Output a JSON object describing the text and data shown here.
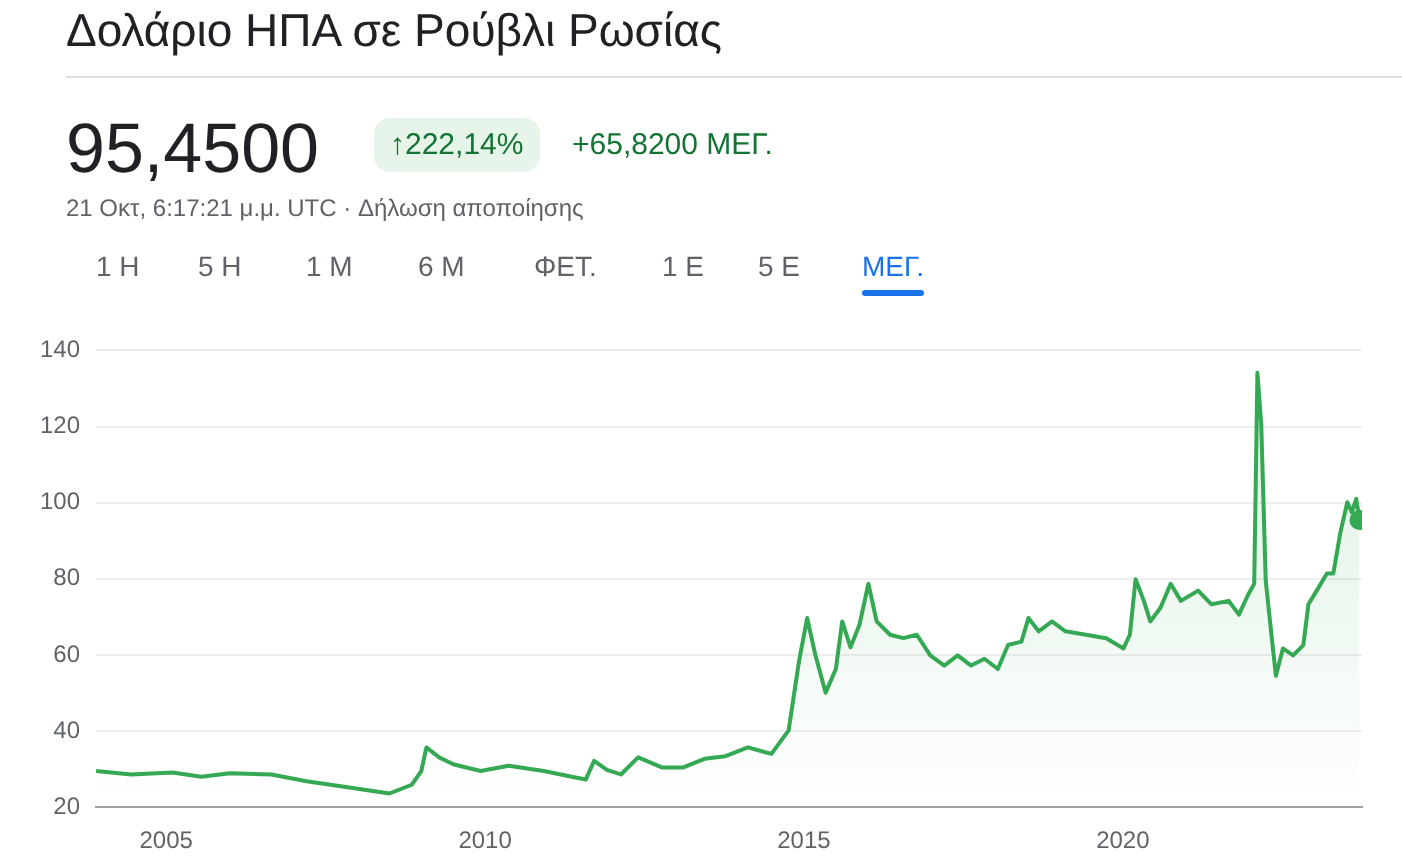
{
  "chart_data": {
    "type": "area",
    "title": "Δολάριο ΗΠΑ σε Ρούβλι Ρωσίας",
    "subtitle": "21 Οκτ, 6:17:21 μ.μ. UTC · Δήλωση αποποίησης",
    "annotations": [
      "95,4500",
      "↑222,14%",
      "+65,8200 ΜΕΓ.",
      "1 Η",
      "5 Η",
      "1 Μ",
      "6 Μ",
      "ΦΕΤ.",
      "1 Ε",
      "5 Ε",
      "ΜΕΓ."
    ],
    "x": [
      2003.9,
      2004.45,
      2005.1,
      2005.55,
      2006.0,
      2006.65,
      2007.2,
      2007.95,
      2008.5,
      2008.85,
      2009.0,
      2009.08,
      2009.28,
      2009.5,
      2009.93,
      2010.37,
      2010.92,
      2011.36,
      2011.58,
      2011.71,
      2011.91,
      2012.13,
      2012.4,
      2012.78,
      2013.1,
      2013.44,
      2013.77,
      2014.12,
      2014.49,
      2014.76,
      2014.92,
      2015.05,
      2015.18,
      2015.34,
      2015.5,
      2015.6,
      2015.73,
      2015.87,
      2016.01,
      2016.14,
      2016.35,
      2016.56,
      2016.77,
      2016.98,
      2017.2,
      2017.41,
      2017.62,
      2017.83,
      2018.04,
      2018.2,
      2018.41,
      2018.52,
      2018.68,
      2018.89,
      2019.1,
      2019.42,
      2019.74,
      2020.01,
      2020.11,
      2020.2,
      2020.33,
      2020.43,
      2020.59,
      2020.75,
      2020.91,
      2021.18,
      2021.39,
      2021.66,
      2021.82,
      2021.97,
      2022.06,
      2022.11,
      2022.17,
      2022.24,
      2022.33,
      2022.4,
      2022.51,
      2022.67,
      2022.83,
      2022.91,
      2023.04,
      2023.2,
      2023.3,
      2023.41,
      2023.52,
      2023.59,
      2023.66,
      2023.71
    ],
    "series": [
      {
        "color": "#34a853",
        "values": [
          29.5,
          28.6,
          29.1,
          28.0,
          28.9,
          28.6,
          26.8,
          25.0,
          23.6,
          25.9,
          29.5,
          35.7,
          33.1,
          31.3,
          29.5,
          30.9,
          29.5,
          28.0,
          27.3,
          32.2,
          29.8,
          28.6,
          33.1,
          30.4,
          30.4,
          32.7,
          33.4,
          35.7,
          34.0,
          40.2,
          58.1,
          69.7,
          59.9,
          50.1,
          56.3,
          68.8,
          62.0,
          67.9,
          78.7,
          68.8,
          65.3,
          64.4,
          65.3,
          59.9,
          57.2,
          59.9,
          57.2,
          59.0,
          56.3,
          62.6,
          63.5,
          69.7,
          66.2,
          68.8,
          66.2,
          65.3,
          64.4,
          61.7,
          65.3,
          79.9,
          74.2,
          68.8,
          72.4,
          78.7,
          74.2,
          76.9,
          73.3,
          74.2,
          70.6,
          76.0,
          78.7,
          134.1,
          120.7,
          79.6,
          65.3,
          54.5,
          61.7,
          59.9,
          62.6,
          73.3,
          76.9,
          81.4,
          81.4,
          92.1,
          100.1,
          97.5,
          101.0,
          95.45
        ]
      }
    ],
    "xlim": [
      2003.9,
      2023.75
    ],
    "xticks": [
      2005,
      2010,
      2015,
      2020
    ],
    "ylim": [
      20,
      140
    ],
    "yticks": [
      20,
      40,
      60,
      80,
      100,
      120,
      140
    ],
    "grid": "y",
    "legend": false
  }
}
